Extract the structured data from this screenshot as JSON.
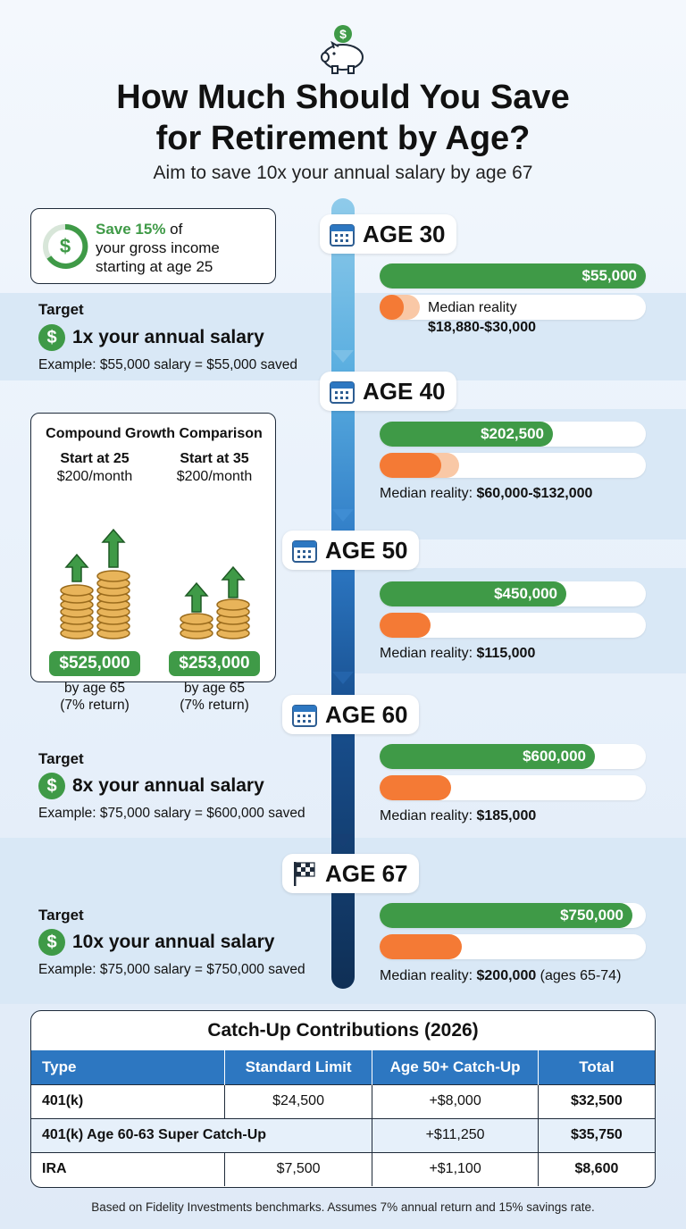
{
  "header": {
    "icon": "piggy-bank-icon",
    "title_line1": "How Much Should You Save",
    "title_line2": "for Retirement by Age?",
    "subtitle": "Aim to save 10x your annual salary by age 67"
  },
  "save_tip": {
    "icon": "dollar-ring-icon",
    "highlight": "Save 15%",
    "text_after": " of",
    "line2": "your gross income",
    "line3": "starting at age 25"
  },
  "milestones": [
    {
      "age": "AGE 30",
      "target_amount": "$55,000",
      "target_fraction": 1.0,
      "median_label": "Median reality",
      "median_value": "$18,880-$30,000",
      "median_low_fraction": 0.09,
      "median_high_fraction": 0.15
    },
    {
      "age": "AGE 40",
      "target_amount": "$202,500",
      "target_fraction": 0.65,
      "median_label": "Median reality: ",
      "median_value": "$60,000-$132,000",
      "median_low_fraction": 0.23,
      "median_high_fraction": 0.3
    },
    {
      "age": "AGE 50",
      "target_amount": "$450,000",
      "target_fraction": 0.7,
      "median_label": "Median reality: ",
      "median_value": "$115,000",
      "median_fraction": 0.19
    },
    {
      "age": "AGE 60",
      "target_amount": "$600,000",
      "target_fraction": 0.81,
      "median_label": "Median reality: ",
      "median_value": "$185,000",
      "median_fraction": 0.27
    },
    {
      "age": "AGE 67",
      "target_amount": "$750,000",
      "target_fraction": 0.95,
      "median_label": "Median reality: ",
      "median_value": "$200,000",
      "median_suffix": " (ages 65-74)",
      "median_fraction": 0.31
    }
  ],
  "targets": [
    {
      "label": "Target",
      "text": "1x your annual salary",
      "example": "Example: $55,000 salary = $55,000 saved"
    },
    {
      "label": "Target",
      "text": "8x your annual salary",
      "example": "Example: $75,000 salary = $600,000 saved"
    },
    {
      "label": "Target",
      "text": "10x your annual salary",
      "example": "Example: $75,000 salary = $750,000 saved"
    }
  ],
  "compound": {
    "title": "Compound Growth Comparison",
    "columns": [
      {
        "head": "Start at 25",
        "sub": "$200/month",
        "amount": "$525,000",
        "foot1": "by age 65",
        "foot2": "(7% return)"
      },
      {
        "head": "Start at 35",
        "sub": "$200/month",
        "amount": "$253,000",
        "foot1": "by age 65",
        "foot2": "(7% return)"
      }
    ]
  },
  "catchup": {
    "title": "Catch-Up Contributions (2026)",
    "headers": [
      "Type",
      "Standard Limit",
      "Age 50+ Catch-Up",
      "Total"
    ],
    "rows": [
      [
        "401(k)",
        "$24,500",
        "+$8,000",
        "$32,500"
      ],
      [
        "401(k) Age 60-63 Super Catch-Up",
        "",
        "+$11,250",
        "$35,750"
      ],
      [
        "IRA",
        "$7,500",
        "+$1,100",
        "$8,600"
      ]
    ]
  },
  "footnote": "Based on Fidelity Investments benchmarks. Assumes 7% annual return and 15% savings rate.",
  "colors": {
    "green": "#3f9a47",
    "orange": "#f47a35",
    "blue": "#2d77c1",
    "navy": "#0f2f55"
  }
}
